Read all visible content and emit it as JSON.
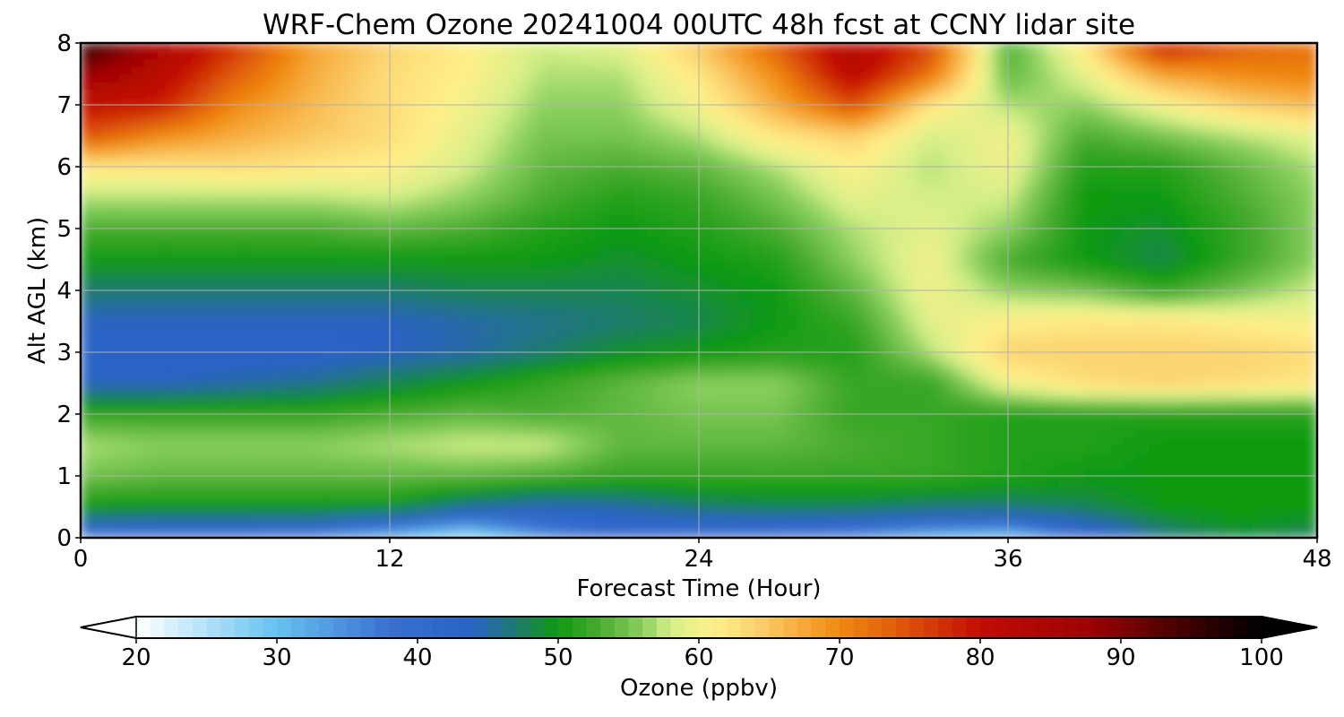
{
  "chart_data": {
    "type": "heatmap",
    "title": "WRF-Chem Ozone  20241004 00UTC 48h fcst at CCNY lidar site",
    "xlabel": "Forecast Time (Hour)",
    "ylabel": "Alt AGL (km)",
    "xlim": [
      0,
      48
    ],
    "ylim": [
      0,
      8
    ],
    "xticks": [
      0,
      12,
      24,
      36,
      48
    ],
    "yticks": [
      0,
      1,
      2,
      3,
      4,
      5,
      6,
      7,
      8
    ],
    "grid": true,
    "colorbar": {
      "label": "Ozone  (ppbv)",
      "range": [
        20,
        100
      ],
      "ticks": [
        20,
        30,
        40,
        50,
        60,
        70,
        80,
        90,
        100
      ],
      "extend": "both",
      "orientation": "horizontal",
      "placement": "bottom",
      "colors": [
        {
          "v": 20,
          "c": "#ffffff"
        },
        {
          "v": 30,
          "c": "#66c2f0"
        },
        {
          "v": 38,
          "c": "#3a6fd0"
        },
        {
          "v": 44,
          "c": "#2a62c4"
        },
        {
          "v": 47,
          "c": "#1e7a70"
        },
        {
          "v": 50,
          "c": "#0e9a10"
        },
        {
          "v": 53,
          "c": "#4aac30"
        },
        {
          "v": 56,
          "c": "#8cd060"
        },
        {
          "v": 58,
          "c": "#d6ef88"
        },
        {
          "v": 61,
          "c": "#fff08a"
        },
        {
          "v": 64,
          "c": "#fbd370"
        },
        {
          "v": 67,
          "c": "#f7ad40"
        },
        {
          "v": 70,
          "c": "#f08a10"
        },
        {
          "v": 74,
          "c": "#e05c08"
        },
        {
          "v": 80,
          "c": "#c20c04"
        },
        {
          "v": 88,
          "c": "#9a0202"
        },
        {
          "v": 95,
          "c": "#3a0000"
        },
        {
          "v": 100,
          "c": "#000000"
        }
      ]
    },
    "x": [
      0,
      3,
      6,
      9,
      12,
      15,
      18,
      21,
      24,
      27,
      30,
      33,
      36,
      39,
      42,
      45,
      48
    ],
    "y": [
      0,
      0.25,
      0.5,
      1,
      1.5,
      2,
      2.5,
      3,
      3.5,
      4,
      4.5,
      5,
      5.5,
      6,
      6.5,
      7,
      7.5,
      8
    ],
    "z": [
      [
        35,
        36,
        36,
        35,
        30,
        25,
        35,
        40,
        37,
        36,
        35,
        30,
        28,
        40,
        46,
        48,
        47
      ],
      [
        45,
        44,
        44,
        44,
        41,
        36,
        39,
        42,
        43,
        43,
        42,
        40,
        40,
        44,
        48,
        50,
        49
      ],
      [
        50,
        50,
        50,
        50,
        50,
        46,
        44,
        45,
        47,
        48,
        48,
        47,
        47,
        48,
        50,
        50,
        50
      ],
      [
        55,
        54,
        54,
        54,
        54,
        54,
        53,
        52,
        52,
        52,
        52,
        52,
        51,
        50,
        50,
        50,
        50
      ],
      [
        57,
        56,
        56,
        56,
        57,
        58,
        58,
        54,
        54,
        54,
        53,
        52,
        51,
        51,
        50,
        50,
        50
      ],
      [
        52,
        52,
        52,
        52,
        53,
        54,
        53,
        54,
        55,
        55,
        52,
        52,
        51,
        51,
        51,
        51,
        51
      ],
      [
        44,
        44,
        45,
        46,
        48,
        50,
        52,
        54,
        56,
        56,
        52,
        52,
        60,
        63,
        64,
        63,
        62
      ],
      [
        43,
        43,
        43,
        43,
        44,
        45,
        47,
        49,
        50,
        51,
        51,
        57,
        64,
        64,
        64,
        64,
        63
      ],
      [
        44,
        44,
        44,
        44,
        44,
        45,
        46,
        47,
        48,
        50,
        52,
        59,
        61,
        62,
        62,
        61,
        60
      ],
      [
        47,
        47,
        47,
        47,
        47,
        48,
        48,
        48,
        49,
        50,
        54,
        60,
        56,
        55,
        52,
        55,
        58
      ],
      [
        50,
        50,
        50,
        50,
        50,
        50,
        50,
        49,
        50,
        51,
        56,
        60,
        53,
        50,
        48,
        52,
        56
      ],
      [
        53,
        53,
        53,
        53,
        54,
        53,
        51,
        50,
        51,
        53,
        57,
        59,
        56,
        50,
        49,
        52,
        56
      ],
      [
        57,
        57,
        57,
        57,
        58,
        56,
        53,
        51,
        52,
        55,
        59,
        58,
        58,
        50,
        50,
        53,
        56
      ],
      [
        62,
        62,
        63,
        62,
        61,
        58,
        54,
        53,
        54,
        57,
        61,
        57,
        60,
        51,
        51,
        54,
        57
      ],
      [
        75,
        70,
        67,
        65,
        63,
        59,
        55,
        55,
        57,
        62,
        64,
        58,
        60,
        53,
        55,
        57,
        59
      ],
      [
        80,
        79,
        70,
        66,
        63,
        60,
        56,
        56,
        60,
        67,
        75,
        62,
        57,
        56,
        60,
        64,
        66
      ],
      [
        88,
        82,
        74,
        67,
        63,
        61,
        57,
        57,
        62,
        70,
        82,
        72,
        54,
        59,
        68,
        70,
        71
      ],
      [
        98,
        86,
        77,
        68,
        64,
        61,
        58,
        59,
        65,
        74,
        84,
        76,
        53,
        62,
        80,
        74,
        72
      ]
    ]
  }
}
